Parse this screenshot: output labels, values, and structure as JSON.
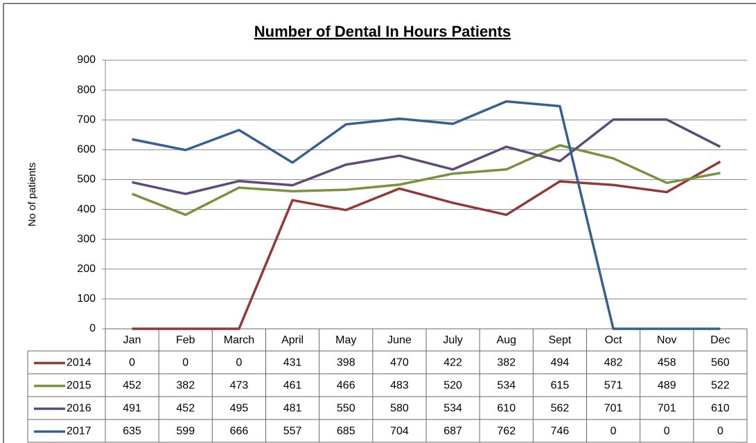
{
  "chart_data": {
    "type": "line",
    "title": "Number of Dental In Hours Patients",
    "y_label": "No of patients",
    "categories": [
      "Jan",
      "Feb",
      "March",
      "April",
      "May",
      "June",
      "July",
      "Aug",
      "Sept",
      "Oct",
      "Nov",
      "Dec"
    ],
    "series": [
      {
        "name": "2014",
        "color": "#953735",
        "values": [
          0,
          0,
          0,
          431,
          398,
          470,
          422,
          382,
          494,
          482,
          458,
          560
        ]
      },
      {
        "name": "2015",
        "color": "#77933c",
        "values": [
          452,
          382,
          473,
          461,
          466,
          483,
          520,
          534,
          615,
          571,
          489,
          522
        ]
      },
      {
        "name": "2016",
        "color": "#604a7b",
        "values": [
          491,
          452,
          495,
          481,
          550,
          580,
          534,
          610,
          562,
          701,
          701,
          610
        ]
      },
      {
        "name": "2017",
        "color": "#376092",
        "values": [
          635,
          599,
          666,
          557,
          685,
          704,
          687,
          762,
          746,
          0,
          0,
          0
        ]
      }
    ],
    "ylim": [
      0,
      900
    ],
    "yticks": [
      0,
      100,
      200,
      300,
      400,
      500,
      600,
      700,
      800,
      900
    ],
    "grid": true,
    "data_table": true
  }
}
